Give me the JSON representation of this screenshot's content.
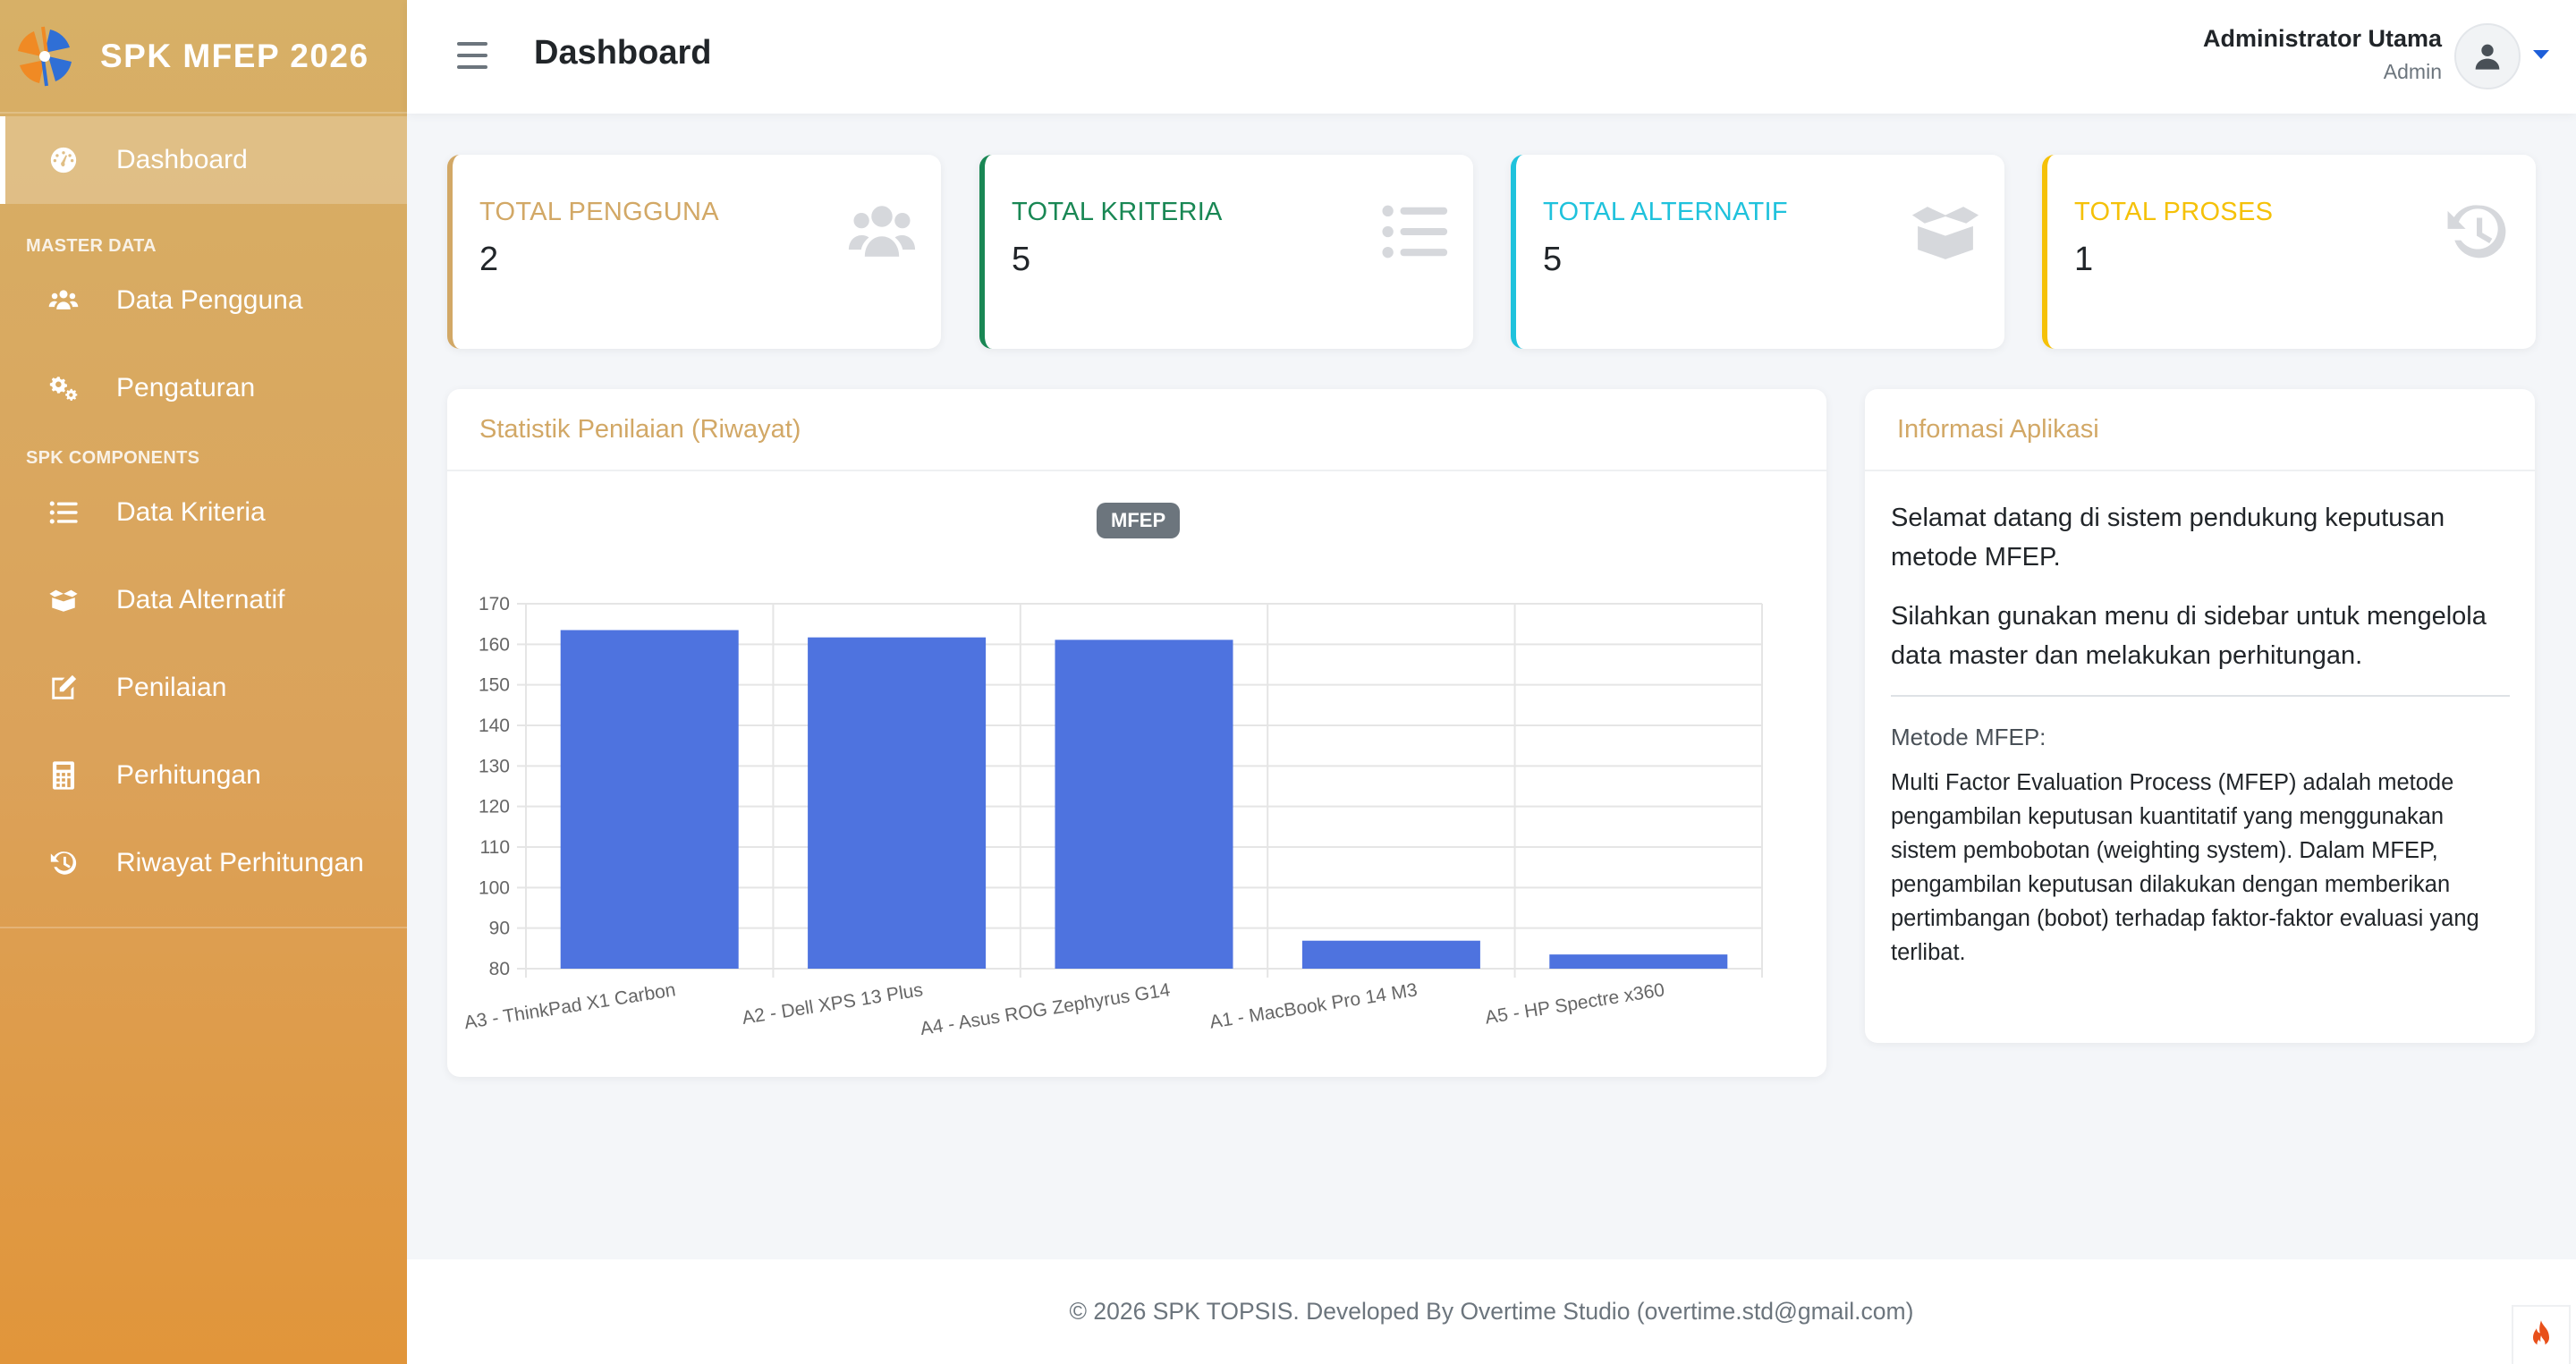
{
  "brand": {
    "name": "SPK MFEP 2026"
  },
  "sidebar": {
    "dashboard": "Dashboard",
    "heading_master": "MASTER DATA",
    "pengguna": "Data Pengguna",
    "pengaturan": "Pengaturan",
    "heading_spk": "SPK COMPONENTS",
    "kriteria": "Data Kriteria",
    "alternatif": "Data Alternatif",
    "penilaian": "Penilaian",
    "perhitungan": "Perhitungan",
    "riwayat": "Riwayat Perhitungan"
  },
  "topbar": {
    "title": "Dashboard",
    "user_name": "Administrator Utama",
    "user_role": "Admin"
  },
  "stats": [
    {
      "label": "TOTAL PENGGUNA",
      "value": "2",
      "color": "#d2a866",
      "icon": "users-icon"
    },
    {
      "label": "TOTAL KRITERIA",
      "value": "5",
      "color": "#198754",
      "icon": "list-icon"
    },
    {
      "label": "TOTAL ALTERNATIF",
      "value": "5",
      "color": "#1fc2dc",
      "icon": "box-open-icon"
    },
    {
      "label": "TOTAL PROSES",
      "value": "1",
      "color": "#f5c108",
      "icon": "history-icon"
    }
  ],
  "chart_card": {
    "title": "Statistik Penilaian (Riwayat)"
  },
  "chart_data": {
    "type": "bar",
    "categories": [
      "A3 - ThinkPad X1 Carbon",
      "A2 - Dell XPS 13 Plus",
      "A4 - Asus ROG Zephyrus G14",
      "A1 - MacBook Pro 14 M3",
      "A5 - HP Spectre x360"
    ],
    "series": [
      {
        "name": "MFEP",
        "values": [
          163.5,
          161.7,
          161.1,
          86.9,
          83.5
        ]
      }
    ],
    "ylim": [
      80,
      170
    ],
    "yticks": [
      80,
      90,
      100,
      110,
      120,
      130,
      140,
      150,
      160,
      170
    ],
    "grid": true,
    "legend": "top-center",
    "bar_color": "#4e73df"
  },
  "info_card": {
    "title": "Informasi Aplikasi",
    "p1": "Selamat datang di sistem pendukung keputusan metode MFEP.",
    "p2": "Silahkan gunakan menu di sidebar untuk mengelola data master dan melakukan perhitungan.",
    "subtitle": "Metode MFEP:",
    "desc": "Multi Factor Evaluation Process (MFEP) adalah metode pengambilan keputusan kuantitatif yang menggunakan sistem pembobotan (weighting system). Dalam MFEP, pengambilan keputusan dilakukan dengan memberikan pertimbangan (bobot) terhadap faktor-faktor evaluasi yang terlibat."
  },
  "footer": {
    "text": "© 2026 SPK TOPSIS. Developed By Overtime Studio (overtime.std@gmail.com)"
  }
}
